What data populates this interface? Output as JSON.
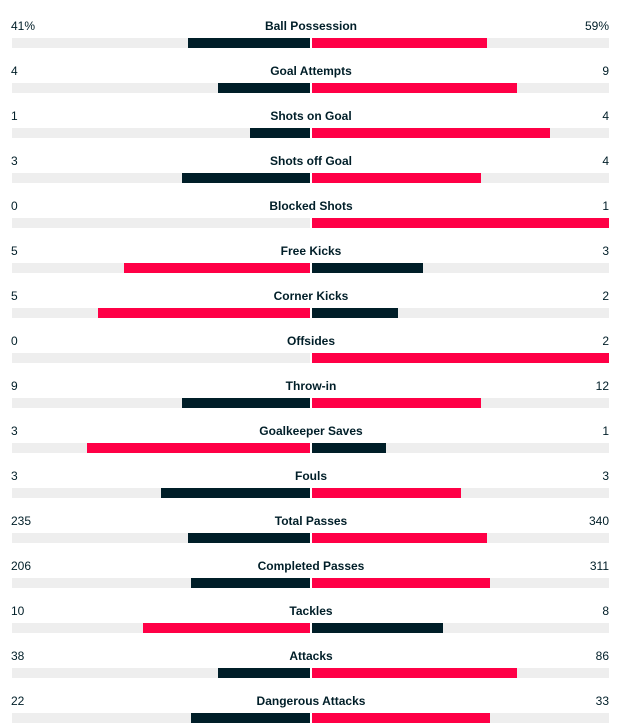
{
  "colors": {
    "leading": "#ff0046",
    "trailing": "#001e28",
    "track": "#eeeeee",
    "text": "#001e28"
  },
  "stats": [
    {
      "label": "Ball Possession",
      "home": "41%",
      "away": "59%",
      "home_share": 0.41,
      "away_share": 0.59
    },
    {
      "label": "Goal Attempts",
      "home": "4",
      "away": "9",
      "home_share": 0.31,
      "away_share": 0.69
    },
    {
      "label": "Shots on Goal",
      "home": "1",
      "away": "4",
      "home_share": 0.2,
      "away_share": 0.8
    },
    {
      "label": "Shots off Goal",
      "home": "3",
      "away": "4",
      "home_share": 0.43,
      "away_share": 0.57
    },
    {
      "label": "Blocked Shots",
      "home": "0",
      "away": "1",
      "home_share": 0.0,
      "away_share": 1.0
    },
    {
      "label": "Free Kicks",
      "home": "5",
      "away": "3",
      "home_share": 0.625,
      "away_share": 0.375
    },
    {
      "label": "Corner Kicks",
      "home": "5",
      "away": "2",
      "home_share": 0.71,
      "away_share": 0.29
    },
    {
      "label": "Offsides",
      "home": "0",
      "away": "2",
      "home_share": 0.0,
      "away_share": 1.0
    },
    {
      "label": "Throw-in",
      "home": "9",
      "away": "12",
      "home_share": 0.43,
      "away_share": 0.57
    },
    {
      "label": "Goalkeeper Saves",
      "home": "3",
      "away": "1",
      "home_share": 0.75,
      "away_share": 0.25
    },
    {
      "label": "Fouls",
      "home": "3",
      "away": "3",
      "home_share": 0.5,
      "away_share": 0.5
    },
    {
      "label": "Total Passes",
      "home": "235",
      "away": "340",
      "home_share": 0.41,
      "away_share": 0.59
    },
    {
      "label": "Completed Passes",
      "home": "206",
      "away": "311",
      "home_share": 0.4,
      "away_share": 0.6
    },
    {
      "label": "Tackles",
      "home": "10",
      "away": "8",
      "home_share": 0.56,
      "away_share": 0.44
    },
    {
      "label": "Attacks",
      "home": "38",
      "away": "86",
      "home_share": 0.31,
      "away_share": 0.69
    },
    {
      "label": "Dangerous Attacks",
      "home": "22",
      "away": "33",
      "home_share": 0.4,
      "away_share": 0.6
    }
  ]
}
